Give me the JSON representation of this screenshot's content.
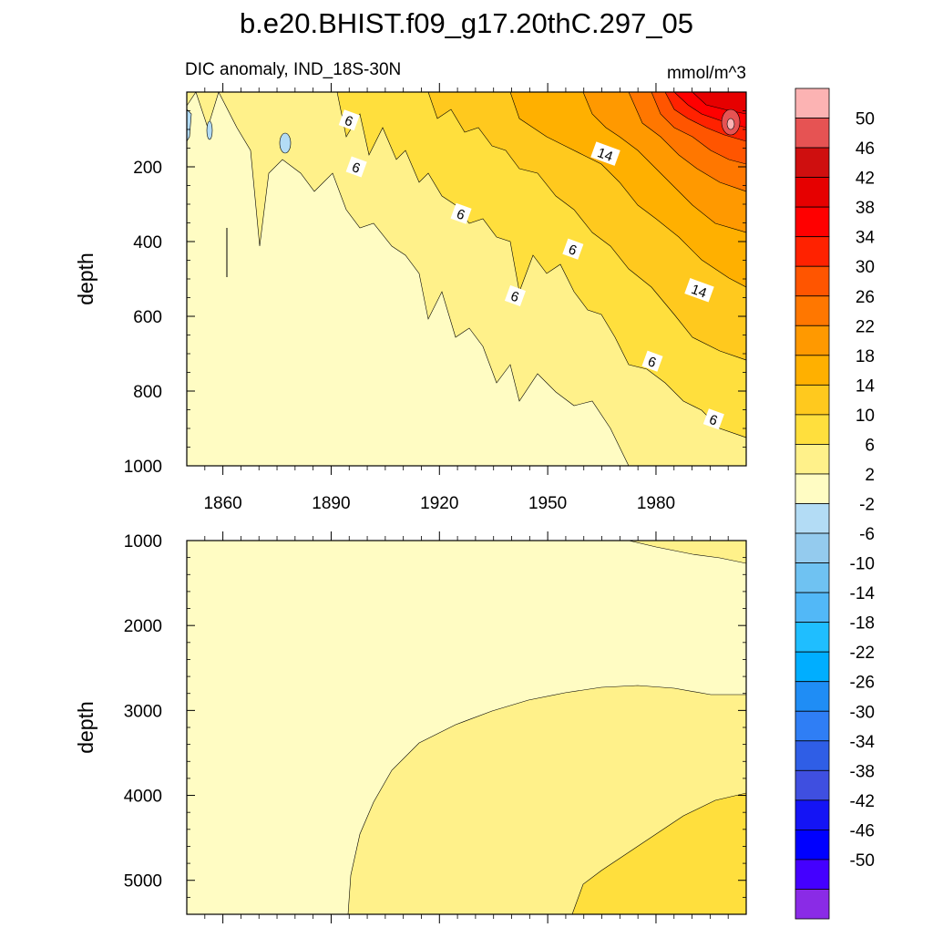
{
  "title": "b.e20.BHIST.f09_g17.20thC.297_05",
  "subtitle_left": "DIC anomaly, IND_18S-30N",
  "subtitle_right": "mmol/m^3",
  "chart_data": [
    {
      "type": "heatmap",
      "panel": "upper",
      "xlabel": "",
      "ylabel": "depth",
      "x_range": [
        1850,
        2005
      ],
      "ylim": [
        0,
        1000
      ],
      "y_reversed": true,
      "x_ticks": [
        1860,
        1890,
        1920,
        1950,
        1980
      ],
      "y_ticks": [
        200,
        400,
        600,
        800,
        1000
      ],
      "contour_labels": [
        {
          "year": 1895,
          "depth": 75,
          "text": "6"
        },
        {
          "year": 1897,
          "depth": 200,
          "text": "6"
        },
        {
          "year": 1926,
          "depth": 325,
          "text": "6"
        },
        {
          "year": 1957,
          "depth": 420,
          "text": "6"
        },
        {
          "year": 1941,
          "depth": 545,
          "text": "6"
        },
        {
          "year": 1979,
          "depth": 720,
          "text": "6"
        },
        {
          "year": 1996,
          "depth": 875,
          "text": "6"
        },
        {
          "year": 1966,
          "depth": 165,
          "text": "14"
        },
        {
          "year": 1992,
          "depth": 530,
          "text": "14"
        }
      ]
    },
    {
      "type": "heatmap",
      "panel": "lower",
      "xlabel": "",
      "ylabel": "depth",
      "x_range": [
        1850,
        2005
      ],
      "ylim": [
        1000,
        5400
      ],
      "y_reversed": true,
      "y_ticks": [
        1000,
        2000,
        3000,
        4000,
        5000
      ]
    }
  ],
  "colorbar": {
    "labels": [
      "50",
      "46",
      "42",
      "38",
      "34",
      "30",
      "26",
      "22",
      "18",
      "14",
      "10",
      "6",
      "2",
      "-2",
      "-6",
      "-10",
      "-14",
      "-18",
      "-22",
      "-26",
      "-30",
      "-34",
      "-38",
      "-42",
      "-46",
      "-50"
    ],
    "colors": [
      "#fcb3b3",
      "#e65353",
      "#cf0f0f",
      "#e60000",
      "#ff0000",
      "#ff2200",
      "#ff5500",
      "#ff7700",
      "#ff9900",
      "#ffb000",
      "#ffc91e",
      "#ffdf3d",
      "#fff18a",
      "#fffcc3",
      "#b3dcf5",
      "#94cbee",
      "#6fc2f2",
      "#52b8f7",
      "#1fbeff",
      "#00aeff",
      "#1f8df5",
      "#2f7ef5",
      "#2f5ee6",
      "#3f4fe0",
      "#1414f5",
      "#0000ff",
      "#4400ff",
      "#8a2be6"
    ]
  }
}
